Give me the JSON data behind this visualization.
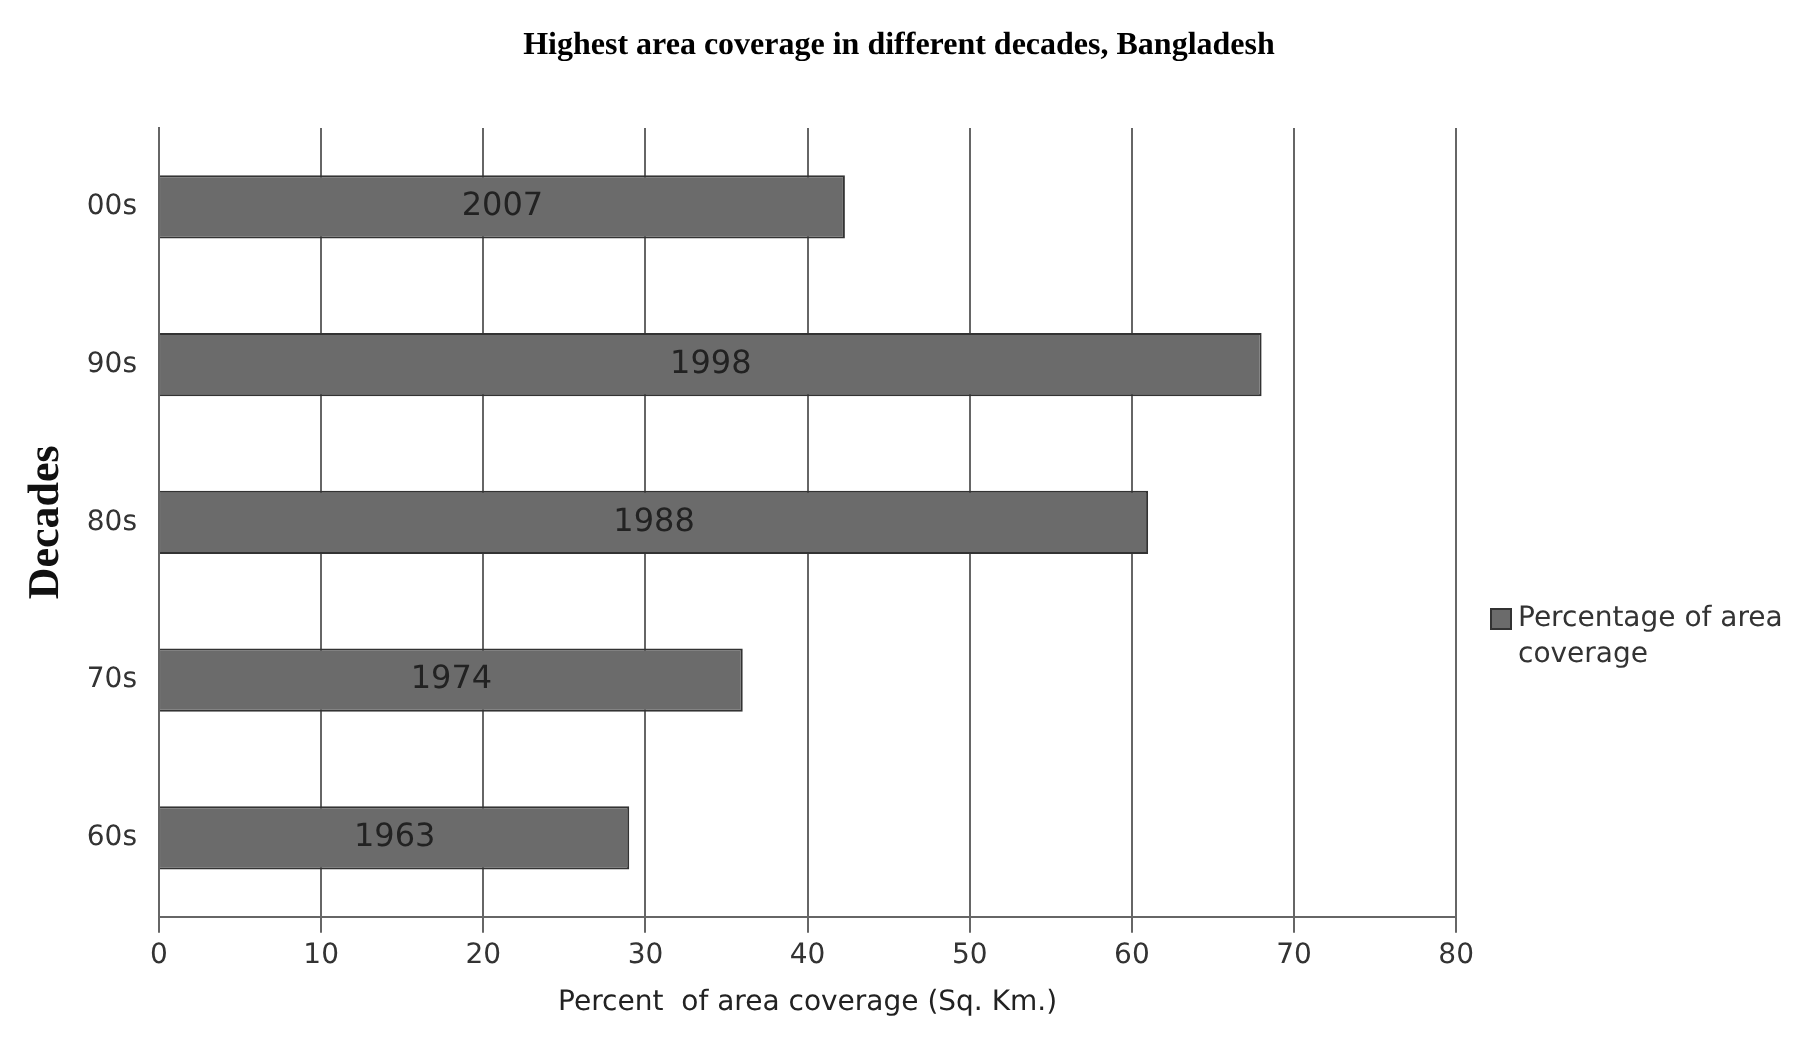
{
  "chart_data": {
    "type": "bar",
    "orientation": "horizontal",
    "title": "Highest area coverage in different decades, Bangladesh",
    "xlabel": "Percent  of area coverage (Sq. Km.)",
    "ylabel": "Decades",
    "categories": [
      "00s",
      "90s",
      "80s",
      "70s",
      "60s"
    ],
    "series": [
      {
        "name": "Percentage of area coverage",
        "color": "#6b6b6b",
        "values": [
          42.3,
          68,
          61,
          36,
          29
        ]
      }
    ],
    "annotations": [
      "2007",
      "1998",
      "1988",
      "1974",
      "1963"
    ],
    "xlim": [
      0,
      80
    ],
    "xticks": [
      0,
      10,
      20,
      30,
      40,
      50,
      60,
      70,
      80
    ],
    "grid": "x",
    "legend": "right"
  }
}
